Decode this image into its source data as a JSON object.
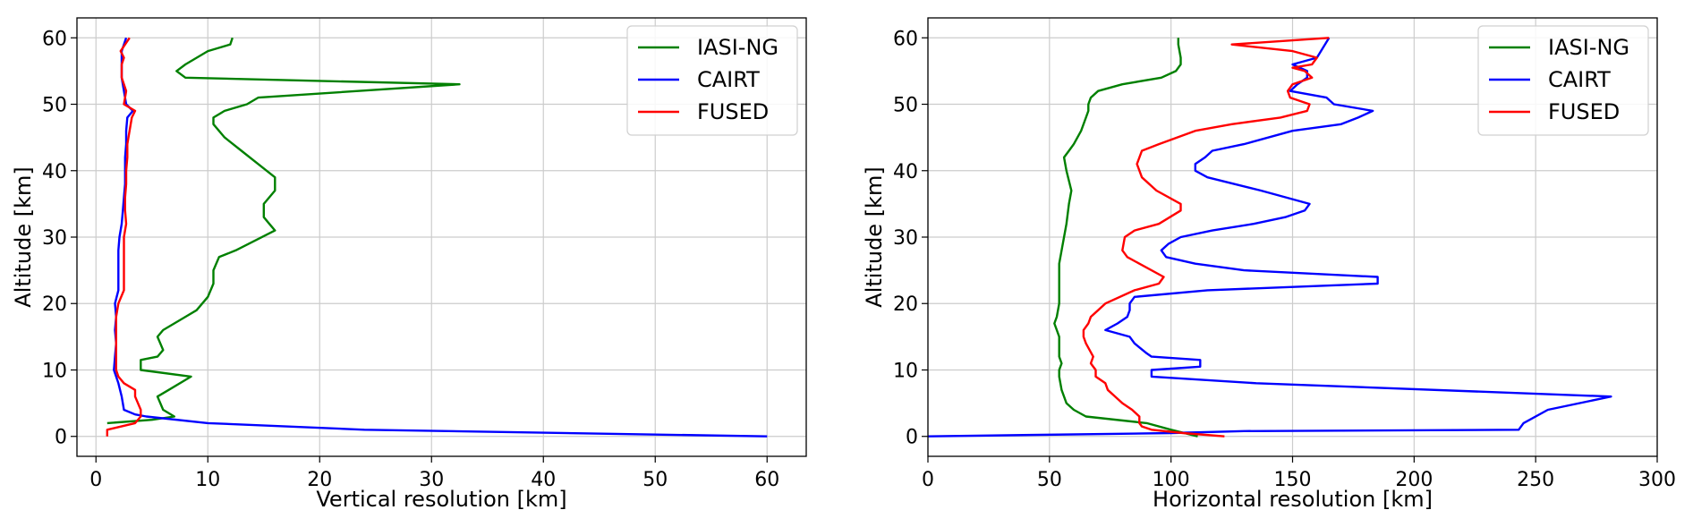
{
  "chart_data": [
    {
      "type": "line",
      "xlabel": "Vertical resolution [km]",
      "ylabel": "Altitude [km]",
      "xlim": [
        -1.7,
        63.5
      ],
      "ylim": [
        -3,
        63
      ],
      "xticks": [
        0,
        10,
        20,
        30,
        40,
        50,
        60
      ],
      "yticks": [
        0,
        10,
        20,
        30,
        40,
        50,
        60
      ],
      "grid": true,
      "legend_position": "top-right",
      "series": [
        {
          "name": "IASI-NG",
          "color": "#008000",
          "points": [
            [
              1.0,
              2
            ],
            [
              5.0,
              2.5
            ],
            [
              7.0,
              3
            ],
            [
              6.0,
              4
            ],
            [
              5.5,
              6
            ],
            [
              6.5,
              7
            ],
            [
              8.5,
              9
            ],
            [
              4.0,
              10
            ],
            [
              4.0,
              11.5
            ],
            [
              5.5,
              12
            ],
            [
              6.0,
              13
            ],
            [
              5.5,
              15
            ],
            [
              6.0,
              16
            ],
            [
              8.0,
              18
            ],
            [
              9.0,
              19
            ],
            [
              10.0,
              21
            ],
            [
              10.5,
              23
            ],
            [
              10.5,
              25
            ],
            [
              11.0,
              27
            ],
            [
              12.5,
              28
            ],
            [
              16.0,
              31
            ],
            [
              15.5,
              32
            ],
            [
              15.0,
              33
            ],
            [
              15.0,
              35
            ],
            [
              16.0,
              37
            ],
            [
              16.0,
              39
            ],
            [
              14.5,
              41
            ],
            [
              13.0,
              43
            ],
            [
              11.5,
              45
            ],
            [
              10.5,
              47
            ],
            [
              10.5,
              48
            ],
            [
              11.5,
              49
            ],
            [
              13.5,
              50
            ],
            [
              14.5,
              51
            ],
            [
              32.5,
              53
            ],
            [
              8.0,
              54
            ],
            [
              7.2,
              55
            ],
            [
              8.0,
              56
            ],
            [
              10.0,
              58
            ],
            [
              12.0,
              59
            ],
            [
              12.2,
              60
            ]
          ]
        },
        {
          "name": "CAIRT",
          "color": "#0000ff",
          "points": [
            [
              60.0,
              0
            ],
            [
              24.0,
              1
            ],
            [
              10.0,
              2
            ],
            [
              4.5,
              3
            ],
            [
              3.5,
              3.3
            ],
            [
              2.5,
              4
            ],
            [
              2.3,
              6
            ],
            [
              2.0,
              8
            ],
            [
              1.8,
              9
            ],
            [
              1.6,
              10
            ],
            [
              1.7,
              12
            ],
            [
              1.8,
              14
            ],
            [
              1.7,
              16
            ],
            [
              1.8,
              18
            ],
            [
              1.7,
              20
            ],
            [
              2.0,
              22
            ],
            [
              2.0,
              24
            ],
            [
              2.0,
              26
            ],
            [
              2.0,
              28
            ],
            [
              2.1,
              30
            ],
            [
              2.3,
              32
            ],
            [
              2.4,
              34
            ],
            [
              2.5,
              36
            ],
            [
              2.6,
              38
            ],
            [
              2.6,
              40
            ],
            [
              2.6,
              42
            ],
            [
              2.7,
              44
            ],
            [
              2.7,
              46
            ],
            [
              2.8,
              48
            ],
            [
              3.3,
              49
            ],
            [
              2.7,
              50
            ],
            [
              2.5,
              52
            ],
            [
              2.3,
              54
            ],
            [
              2.3,
              56
            ],
            [
              2.3,
              58
            ],
            [
              2.5,
              59
            ],
            [
              2.7,
              60
            ]
          ]
        },
        {
          "name": "FUSED",
          "color": "#ff0000",
          "points": [
            [
              1.0,
              0
            ],
            [
              1.0,
              1
            ],
            [
              3.5,
              2
            ],
            [
              4.0,
              3
            ],
            [
              4.0,
              4
            ],
            [
              3.5,
              6
            ],
            [
              3.5,
              7
            ],
            [
              2.5,
              8
            ],
            [
              2.0,
              9
            ],
            [
              1.8,
              10
            ],
            [
              1.8,
              12
            ],
            [
              1.8,
              14
            ],
            [
              1.8,
              16
            ],
            [
              1.8,
              18
            ],
            [
              2.0,
              20
            ],
            [
              2.5,
              22
            ],
            [
              2.5,
              24
            ],
            [
              2.5,
              26
            ],
            [
              2.5,
              28
            ],
            [
              2.5,
              30
            ],
            [
              2.7,
              32
            ],
            [
              2.6,
              34
            ],
            [
              2.6,
              36
            ],
            [
              2.7,
              38
            ],
            [
              2.7,
              40
            ],
            [
              2.8,
              42
            ],
            [
              2.8,
              44
            ],
            [
              3.0,
              46
            ],
            [
              3.2,
              48
            ],
            [
              3.5,
              49
            ],
            [
              2.5,
              50
            ],
            [
              2.7,
              52
            ],
            [
              2.3,
              54
            ],
            [
              2.3,
              56
            ],
            [
              2.5,
              57
            ],
            [
              2.2,
              58
            ],
            [
              2.6,
              59
            ],
            [
              3.0,
              60
            ]
          ]
        }
      ]
    },
    {
      "type": "line",
      "xlabel": "Horizontal resolution [km]",
      "ylabel": "Altitude [km]",
      "xlim": [
        0,
        300
      ],
      "ylim": [
        -3,
        63
      ],
      "xticks": [
        0,
        50,
        100,
        150,
        200,
        250,
        300
      ],
      "yticks": [
        0,
        10,
        20,
        30,
        40,
        50,
        60
      ],
      "grid": true,
      "legend_position": "top-right",
      "series": [
        {
          "name": "IASI-NG",
          "color": "#008000",
          "points": [
            [
              111,
              0
            ],
            [
              100,
              1
            ],
            [
              90,
              2
            ],
            [
              65,
              3
            ],
            [
              60,
              4
            ],
            [
              57,
              5
            ],
            [
              55,
              7
            ],
            [
              54,
              9
            ],
            [
              54,
              10
            ],
            [
              55,
              11
            ],
            [
              54,
              12
            ],
            [
              54,
              14
            ],
            [
              54,
              15
            ],
            [
              53,
              16
            ],
            [
              52,
              17
            ],
            [
              53,
              18
            ],
            [
              54,
              20
            ],
            [
              54,
              22
            ],
            [
              54,
              24
            ],
            [
              54,
              26
            ],
            [
              55,
              28
            ],
            [
              56,
              30
            ],
            [
              57,
              32
            ],
            [
              58,
              35
            ],
            [
              59,
              37
            ],
            [
              57,
              40
            ],
            [
              56,
              42
            ],
            [
              58,
              43
            ],
            [
              60,
              44
            ],
            [
              63,
              46
            ],
            [
              65,
              48
            ],
            [
              66,
              49
            ],
            [
              66,
              50
            ],
            [
              67,
              51
            ],
            [
              70,
              52
            ],
            [
              80,
              53
            ],
            [
              96,
              54
            ],
            [
              102,
              55
            ],
            [
              104,
              56
            ],
            [
              104,
              57
            ],
            [
              103,
              59
            ],
            [
              103,
              60
            ]
          ]
        },
        {
          "name": "CAIRT",
          "color": "#0000ff",
          "points": [
            [
              0,
              0
            ],
            [
              100,
              0.5
            ],
            [
              130,
              0.8
            ],
            [
              243,
              1
            ],
            [
              245,
              2
            ],
            [
              255,
              4
            ],
            [
              281,
              6
            ],
            [
              135,
              8
            ],
            [
              92,
              9
            ],
            [
              92,
              10
            ],
            [
              112,
              10.5
            ],
            [
              112,
              11.5
            ],
            [
              92,
              12
            ],
            [
              90,
              12.5
            ],
            [
              85,
              14
            ],
            [
              83,
              15
            ],
            [
              73,
              16
            ],
            [
              78,
              17
            ],
            [
              82,
              18
            ],
            [
              83,
              19
            ],
            [
              83,
              20
            ],
            [
              85,
              21
            ],
            [
              115,
              22
            ],
            [
              185,
              23
            ],
            [
              185,
              24
            ],
            [
              130,
              25
            ],
            [
              110,
              26
            ],
            [
              98,
              27
            ],
            [
              96,
              28
            ],
            [
              99,
              29
            ],
            [
              104,
              30
            ],
            [
              117,
              31
            ],
            [
              134,
              32
            ],
            [
              147,
              33
            ],
            [
              155,
              34
            ],
            [
              157,
              35
            ],
            [
              137,
              37
            ],
            [
              115,
              39
            ],
            [
              110,
              40
            ],
            [
              110,
              41
            ],
            [
              114,
              42
            ],
            [
              117,
              43
            ],
            [
              130,
              44
            ],
            [
              150,
              46
            ],
            [
              170,
              47
            ],
            [
              177,
              48
            ],
            [
              183,
              49
            ],
            [
              167,
              50
            ],
            [
              164,
              51
            ],
            [
              149,
              52
            ],
            [
              152,
              53
            ],
            [
              156,
              54
            ],
            [
              156,
              55
            ],
            [
              150,
              56
            ],
            [
              160,
              57
            ],
            [
              165,
              60
            ]
          ]
        },
        {
          "name": "FUSED",
          "color": "#ff0000",
          "points": [
            [
              122,
              0
            ],
            [
              105,
              0.5
            ],
            [
              92,
              1
            ],
            [
              88,
              1.5
            ],
            [
              87,
              2
            ],
            [
              87,
              3
            ],
            [
              84,
              4
            ],
            [
              80,
              5
            ],
            [
              77,
              6
            ],
            [
              74,
              7
            ],
            [
              73,
              8
            ],
            [
              69,
              9
            ],
            [
              69,
              10
            ],
            [
              67,
              11
            ],
            [
              68,
              12
            ],
            [
              65,
              14
            ],
            [
              64,
              15
            ],
            [
              64,
              16
            ],
            [
              66,
              17
            ],
            [
              67,
              18
            ],
            [
              70,
              19
            ],
            [
              73,
              20
            ],
            [
              85,
              22
            ],
            [
              95,
              23
            ],
            [
              97,
              24
            ],
            [
              87,
              26
            ],
            [
              82,
              27
            ],
            [
              80,
              28
            ],
            [
              81,
              30
            ],
            [
              85,
              31
            ],
            [
              95,
              32
            ],
            [
              104,
              34
            ],
            [
              104,
              35
            ],
            [
              94,
              37
            ],
            [
              88,
              39
            ],
            [
              86,
              41
            ],
            [
              88,
              43
            ],
            [
              95,
              44
            ],
            [
              110,
              46
            ],
            [
              125,
              47
            ],
            [
              145,
              48
            ],
            [
              156,
              49
            ],
            [
              157,
              50
            ],
            [
              149,
              51
            ],
            [
              148,
              52
            ],
            [
              150,
              53
            ],
            [
              158,
              54
            ],
            [
              155,
              55
            ],
            [
              150,
              55.5
            ],
            [
              158,
              56
            ],
            [
              160,
              57
            ],
            [
              150,
              58
            ],
            [
              125,
              59
            ],
            [
              165,
              60
            ]
          ]
        }
      ]
    }
  ]
}
